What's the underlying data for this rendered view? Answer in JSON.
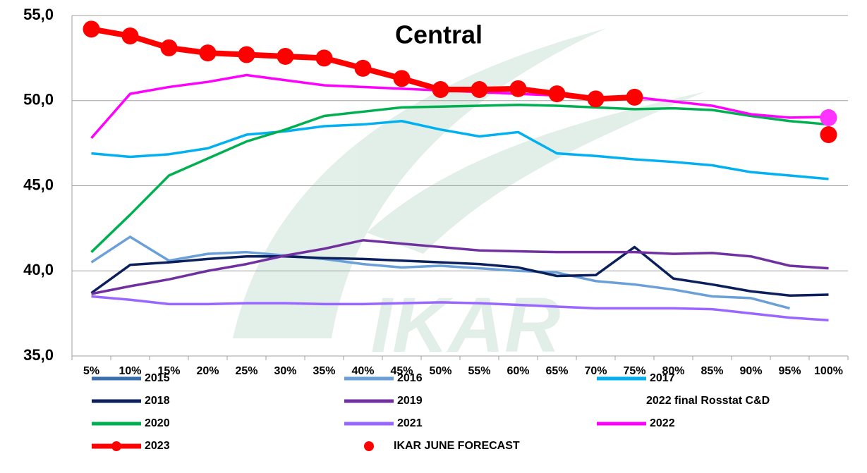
{
  "chart_data": {
    "type": "line",
    "title": "Central",
    "categories": [
      "5%",
      "10%",
      "15%",
      "20%",
      "25%",
      "30%",
      "35%",
      "40%",
      "45%",
      "50%",
      "55%",
      "60%",
      "65%",
      "70%",
      "75%",
      "80%",
      "85%",
      "90%",
      "95%",
      "100%"
    ],
    "ylim": [
      35,
      55
    ],
    "yticks": [
      {
        "value": 35,
        "label": "35,0"
      },
      {
        "value": 40,
        "label": "40,0"
      },
      {
        "value": 45,
        "label": "45,0"
      },
      {
        "value": 50,
        "label": "50,0"
      },
      {
        "value": 55,
        "label": "55,0"
      }
    ],
    "grid": true,
    "series": [
      {
        "name": "2015",
        "color": "#3a6fb0",
        "style": "line",
        "values": [
          null,
          null,
          null,
          null,
          null,
          null,
          null,
          null,
          null,
          null,
          null,
          null,
          null,
          null,
          null,
          null,
          null,
          null,
          null,
          null
        ]
      },
      {
        "name": "2016",
        "color": "#6a9fd8",
        "style": "line",
        "values": [
          40.5,
          42.0,
          40.6,
          41.0,
          41.1,
          40.9,
          40.7,
          40.4,
          40.2,
          40.3,
          40.15,
          40.0,
          39.9,
          39.4,
          39.2,
          38.9,
          38.5,
          38.4,
          37.8,
          null
        ]
      },
      {
        "name": "2017",
        "color": "#00b0f0",
        "style": "line",
        "values": [
          46.9,
          46.7,
          46.85,
          47.2,
          48.0,
          48.2,
          48.5,
          48.6,
          48.8,
          48.3,
          47.9,
          48.15,
          46.9,
          46.75,
          46.55,
          46.4,
          46.2,
          45.8,
          45.6,
          45.4
        ]
      },
      {
        "name": "2018",
        "color": "#0a1f5c",
        "style": "line",
        "values": [
          38.7,
          40.35,
          40.5,
          40.7,
          40.85,
          40.85,
          40.75,
          40.7,
          40.6,
          40.5,
          40.4,
          40.2,
          39.7,
          39.75,
          41.4,
          39.55,
          39.2,
          38.8,
          38.55,
          38.6
        ]
      },
      {
        "name": "2019",
        "color": "#7030a0",
        "style": "line",
        "values": [
          38.65,
          39.1,
          39.5,
          40.0,
          40.4,
          40.9,
          41.3,
          41.8,
          41.6,
          41.4,
          41.2,
          41.15,
          41.1,
          41.1,
          41.1,
          41.0,
          41.05,
          40.85,
          40.3,
          40.15
        ]
      },
      {
        "name": "2022 final Rosstat C&D",
        "color": "#ff33ff",
        "style": "point",
        "legend_symbol": false,
        "values": [
          null,
          null,
          null,
          null,
          null,
          null,
          null,
          null,
          null,
          null,
          null,
          null,
          null,
          null,
          null,
          null,
          null,
          null,
          null,
          49.0
        ]
      },
      {
        "name": "2020",
        "color": "#00b050",
        "style": "line",
        "values": [
          41.1,
          43.3,
          45.6,
          46.6,
          47.6,
          48.3,
          49.1,
          49.35,
          49.6,
          49.65,
          49.7,
          49.75,
          49.7,
          49.6,
          49.5,
          49.55,
          49.45,
          49.1,
          48.8,
          48.6
        ]
      },
      {
        "name": "2021",
        "color": "#9966ff",
        "style": "line",
        "values": [
          38.5,
          38.3,
          38.05,
          38.05,
          38.1,
          38.1,
          38.05,
          38.05,
          38.1,
          38.15,
          38.1,
          38.0,
          37.9,
          37.8,
          37.8,
          37.8,
          37.75,
          37.5,
          37.25,
          37.1
        ]
      },
      {
        "name": "2022",
        "color": "#ff00ff",
        "style": "line",
        "values": [
          47.8,
          50.4,
          50.8,
          51.1,
          51.5,
          51.2,
          50.9,
          50.8,
          50.7,
          50.6,
          50.5,
          50.4,
          50.3,
          50.2,
          50.2,
          49.95,
          49.7,
          49.2,
          49.0,
          49.05
        ]
      },
      {
        "name": "2023",
        "color": "#ff0000",
        "style": "line-markers",
        "values": [
          54.2,
          53.8,
          53.1,
          52.8,
          52.7,
          52.6,
          52.5,
          51.9,
          51.3,
          50.65,
          50.65,
          50.7,
          50.4,
          50.1,
          50.2,
          null,
          null,
          null,
          null,
          null
        ]
      },
      {
        "name": "IKAR JUNE FORECAST",
        "color": "#ff0000",
        "style": "point",
        "values": [
          null,
          null,
          null,
          null,
          null,
          null,
          null,
          null,
          null,
          null,
          null,
          null,
          null,
          null,
          null,
          null,
          null,
          null,
          null,
          48.0
        ]
      }
    ]
  }
}
